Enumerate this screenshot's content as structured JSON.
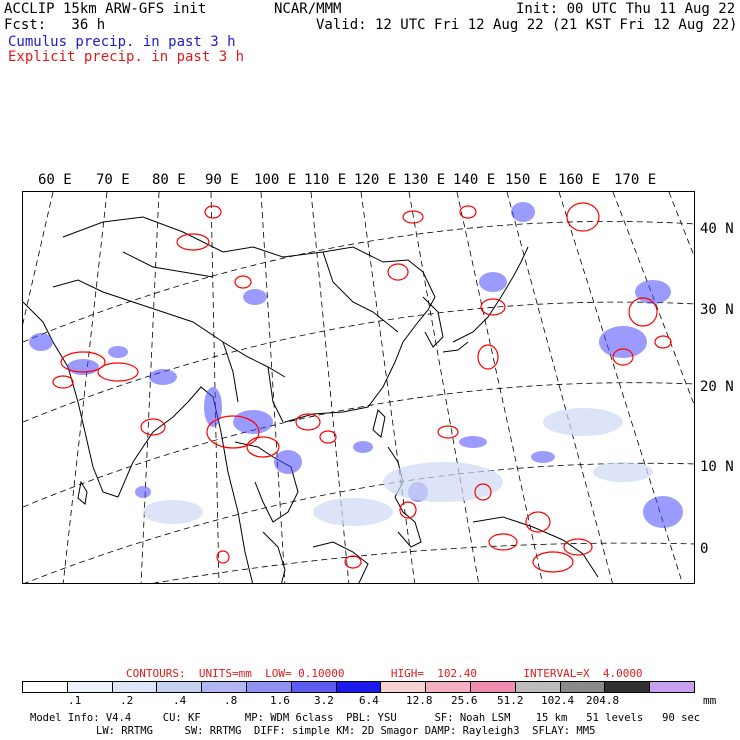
{
  "header": {
    "model_line": "ACCLIP 15km ARW-GFS init",
    "org": "NCAR/MMM",
    "init": "Init: 00 UTC Thu 11 Aug 22",
    "fcst": "Fcst:   36 h",
    "valid": "Valid: 12 UTC Fri 12 Aug 22 (21 KST Fri 12 Aug 22)",
    "legend_cumulus": "Cumulus precip. in past 3 h",
    "legend_explicit": "Explicit precip. in past 3 h"
  },
  "map": {
    "lon_labels": [
      "60 E",
      "70 E",
      "80 E",
      "90 E",
      "100 E",
      "110 E",
      "120 E",
      "130 E",
      "140 E",
      "150 E",
      "160 E",
      "170 E"
    ],
    "lat_labels": [
      "40 N",
      "30 N",
      "20 N",
      "10 N",
      "0"
    ],
    "colors": {
      "cumulus": "#3c3cff",
      "explicit": "#ff0000",
      "coast": "#000000",
      "grid": "#000000"
    }
  },
  "contours": {
    "label": "CONTOURS:  UNITS=mm  LOW= 0.10000       HIGH=  102.40       INTERVAL=X  4.0000"
  },
  "colorbar": {
    "colors": [
      "#ffffff",
      "#eef3fb",
      "#dce6f6",
      "#c4d2f0",
      "#b1b6f2",
      "#8f92ee",
      "#5c5cf0",
      "#1a1aee",
      "#f6d2d2",
      "#f2b0c2",
      "#f08cb0",
      "#bdbdbd",
      "#8a8a8a",
      "#303030",
      "#c7a0f2"
    ],
    "labels": [
      ".1",
      ".2",
      ".4",
      ".8",
      "1.6",
      "3.2",
      "6.4",
      "12.8",
      "25.6",
      "51.2",
      "102.4",
      "204.8"
    ],
    "unit": "mm"
  },
  "footer": {
    "line1": "Model Info: V4.4     CU: KF       MP: WDM 6class  PBL: YSU      SF: Noah LSM    15 km   51 levels   90 sec",
    "line2": "LW: RRTMG     SW: RRTMG  DIFF: simple KM: 2D Smagor DAMP: Rayleigh3  SFLAY: MM5"
  }
}
